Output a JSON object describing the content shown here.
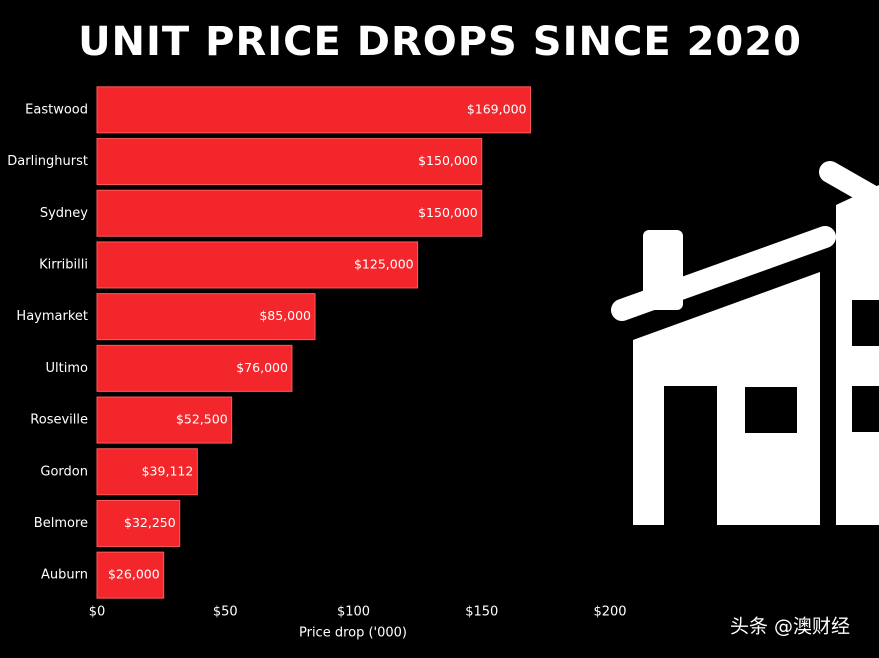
{
  "chart_data": {
    "type": "bar",
    "orientation": "horizontal",
    "title": "UNIT PRICE DROPS SINCE 2020",
    "x_label": "Price drop ('000)",
    "watermark": "头条 @澳财经",
    "categories": [
      "Eastwood",
      "Darlinghurst",
      "Sydney",
      "Kirribilli",
      "Haymarket",
      "Ultimo",
      "Roseville",
      "Gordon",
      "Belmore",
      "Auburn"
    ],
    "values": [
      169,
      150,
      150,
      125,
      85,
      76,
      52.5,
      39.112,
      32.25,
      26
    ],
    "value_labels": [
      "$169,000",
      "$150,000",
      "$150,000",
      "$125,000",
      "$85,000",
      "$76,000",
      "$52,500",
      "$39,112",
      "$32,250",
      "$26,000"
    ],
    "color": "#f2262b",
    "xlim": [
      0,
      200
    ],
    "xticks": [
      {
        "value": 0,
        "label": "$0"
      },
      {
        "value": 50,
        "label": "$50"
      },
      {
        "value": 100,
        "label": "$100"
      },
      {
        "value": 150,
        "label": "$150"
      },
      {
        "value": 200,
        "label": "$200"
      }
    ],
    "grid": false
  }
}
